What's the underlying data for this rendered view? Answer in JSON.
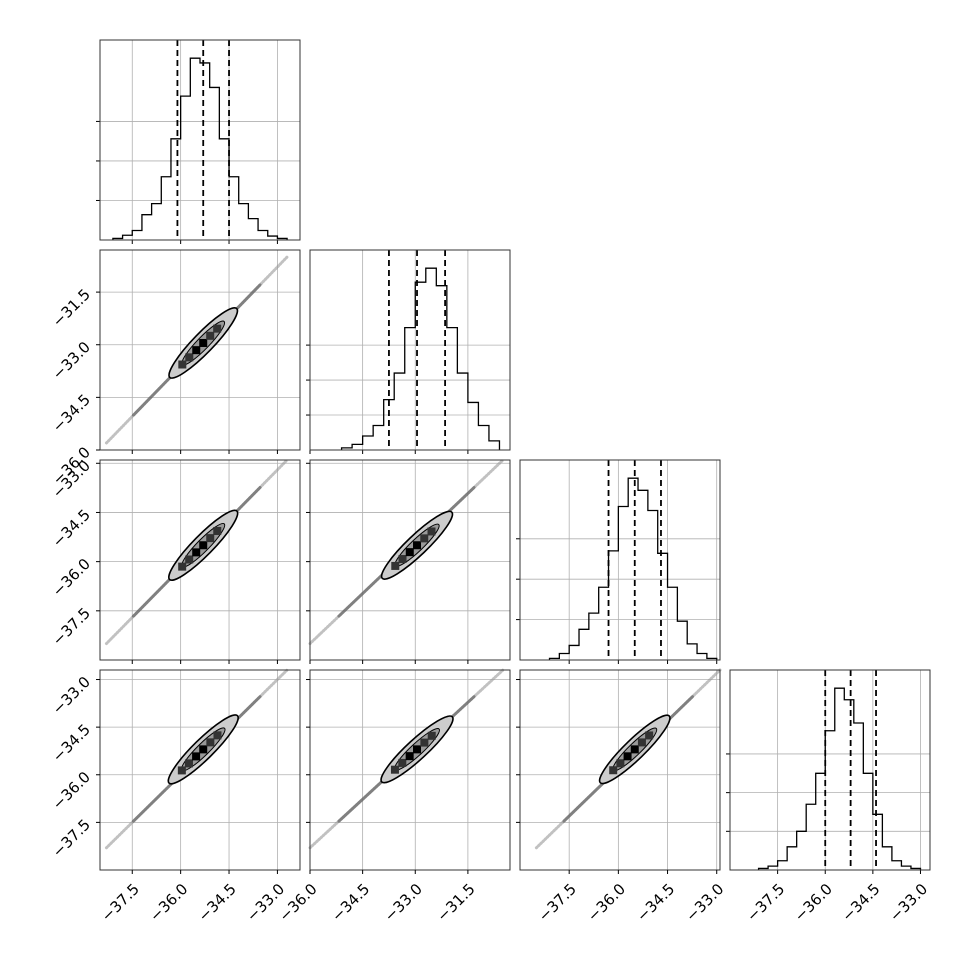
{
  "chart_data": {
    "type": "corner",
    "dimensions": 4,
    "variables": [
      {
        "index": 0,
        "ticks": [
          -37.5,
          -36.0,
          -34.5,
          -33.0
        ],
        "tick_labels": [
          "−37.5",
          "−36.0",
          "−34.5",
          "−33.0"
        ],
        "range": [
          -38.5,
          -32.3
        ]
      },
      {
        "index": 1,
        "ticks": [
          -36.0,
          -34.5,
          -33.0,
          -31.5
        ],
        "tick_labels": [
          "−36.0",
          "−34.5",
          "−33.0",
          "−31.5"
        ],
        "range": [
          -36.0,
          -30.3
        ]
      },
      {
        "index": 2,
        "ticks": [
          -37.5,
          -36.0,
          -34.5,
          -33.0
        ],
        "tick_labels": [
          "−37.5",
          "−36.0",
          "−34.5",
          "−33.0"
        ],
        "range": [
          -39.0,
          -32.9
        ]
      },
      {
        "index": 3,
        "ticks": [
          -37.5,
          -36.0,
          -34.5,
          -33.0
        ],
        "tick_labels": [
          "−37.5",
          "−36.0",
          "−34.5",
          "−33.0"
        ],
        "range": [
          -39.0,
          -32.7
        ]
      }
    ],
    "histograms": [
      {
        "variable": 0,
        "bin_edges": [
          -38.1,
          -37.8,
          -37.5,
          -37.2,
          -36.9,
          -36.6,
          -36.3,
          -36.0,
          -35.7,
          -35.4,
          -35.1,
          -34.8,
          -34.5,
          -34.2,
          -33.9,
          -33.6,
          -33.3,
          -33.0,
          -32.7
        ],
        "counts": [
          0.2,
          0.6,
          1.2,
          3.2,
          4.6,
          8.0,
          12.8,
          18.2,
          23.0,
          22.4,
          19.3,
          12.8,
          8.0,
          4.6,
          2.7,
          1.2,
          0.5,
          0.2
        ],
        "quantiles": [
          -36.1,
          -35.3,
          -34.5
        ],
        "yticks": [
          5,
          10,
          15
        ]
      },
      {
        "variable": 1,
        "bin_edges": [
          -35.1,
          -34.8,
          -34.5,
          -34.2,
          -33.9,
          -33.6,
          -33.3,
          -33.0,
          -32.7,
          -32.4,
          -32.1,
          -31.8,
          -31.5,
          -31.2,
          -30.9,
          -30.6
        ],
        "counts": [
          0.3,
          0.8,
          2.0,
          3.5,
          7.2,
          11.0,
          17.5,
          24.0,
          26.0,
          23.5,
          17.5,
          11.0,
          6.8,
          3.5,
          1.3
        ],
        "quantiles": [
          -33.75,
          -32.95,
          -32.15
        ],
        "yticks": [
          5,
          10,
          15
        ]
      },
      {
        "variable": 2,
        "bin_edges": [
          -38.1,
          -37.8,
          -37.5,
          -37.2,
          -36.9,
          -36.6,
          -36.3,
          -36.0,
          -35.7,
          -35.4,
          -35.1,
          -34.8,
          -34.5,
          -34.2,
          -33.9,
          -33.6,
          -33.3,
          -33.0
        ],
        "counts": [
          0.2,
          0.8,
          1.8,
          3.8,
          5.8,
          9.0,
          13.5,
          19.0,
          22.5,
          21.0,
          18.5,
          13.2,
          9.0,
          4.8,
          2.0,
          0.8,
          0.2
        ],
        "quantiles": [
          -36.3,
          -35.5,
          -34.7
        ],
        "yticks": [
          5,
          10,
          15
        ]
      },
      {
        "variable": 3,
        "bin_edges": [
          -38.1,
          -37.8,
          -37.5,
          -37.2,
          -36.9,
          -36.6,
          -36.3,
          -36.0,
          -35.7,
          -35.4,
          -35.1,
          -34.8,
          -34.5,
          -34.2,
          -33.9,
          -33.6,
          -33.3,
          -33.0
        ],
        "counts": [
          0.2,
          0.5,
          1.2,
          3.0,
          5.0,
          8.5,
          12.5,
          18.0,
          23.5,
          22.0,
          19.0,
          12.5,
          7.2,
          3.0,
          1.2,
          0.5,
          0.2
        ],
        "quantiles": [
          -36.0,
          -35.2,
          -34.4
        ],
        "yticks": [
          5,
          10,
          15
        ]
      }
    ],
    "pairs": [
      {
        "row": 1,
        "col": 0,
        "center": [
          -35.3,
          -32.95
        ],
        "line_start": [
          -38.3,
          -35.8
        ],
        "line_end": [
          -32.7,
          -30.5
        ]
      },
      {
        "row": 2,
        "col": 0,
        "center": [
          -35.3,
          -35.5
        ],
        "line_start": [
          -38.3,
          -38.5
        ],
        "line_end": [
          -32.7,
          -32.9
        ]
      },
      {
        "row": 2,
        "col": 1,
        "center": [
          -32.95,
          -35.5
        ],
        "line_start": [
          -36.0,
          -38.5
        ],
        "line_end": [
          -30.5,
          -32.9
        ]
      },
      {
        "row": 3,
        "col": 0,
        "center": [
          -35.3,
          -35.2
        ],
        "line_start": [
          -38.3,
          -38.3
        ],
        "line_end": [
          -32.7,
          -32.7
        ]
      },
      {
        "row": 3,
        "col": 1,
        "center": [
          -32.95,
          -35.2
        ],
        "line_start": [
          -36.0,
          -38.3
        ],
        "line_end": [
          -30.5,
          -32.7
        ]
      },
      {
        "row": 3,
        "col": 2,
        "center": [
          -35.5,
          -35.2
        ],
        "line_start": [
          -38.5,
          -38.3
        ],
        "line_end": [
          -32.9,
          -32.7
        ]
      }
    ],
    "grid": true,
    "colors": {
      "line": "#000000",
      "grid": "#b0b0b0",
      "fill": "#cccccc"
    }
  }
}
